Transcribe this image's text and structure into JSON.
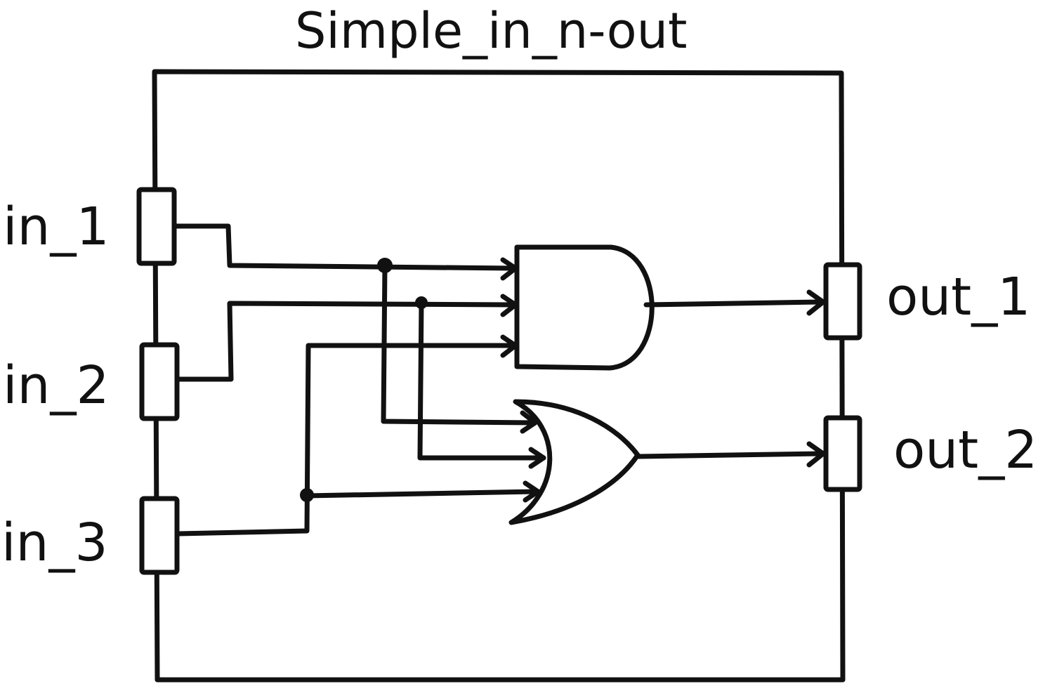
{
  "title": "Simple_in_n-out",
  "inputs": [
    {
      "label": "in_1"
    },
    {
      "label": "in_2"
    },
    {
      "label": "in_3"
    }
  ],
  "outputs": [
    {
      "label": "out_1"
    },
    {
      "label": "out_2"
    }
  ],
  "gates": [
    {
      "type": "AND",
      "icon": "and-gate-icon"
    },
    {
      "type": "OR",
      "icon": "or-gate-icon"
    }
  ],
  "colors": {
    "ink": "#111111",
    "background": "#ffffff"
  }
}
